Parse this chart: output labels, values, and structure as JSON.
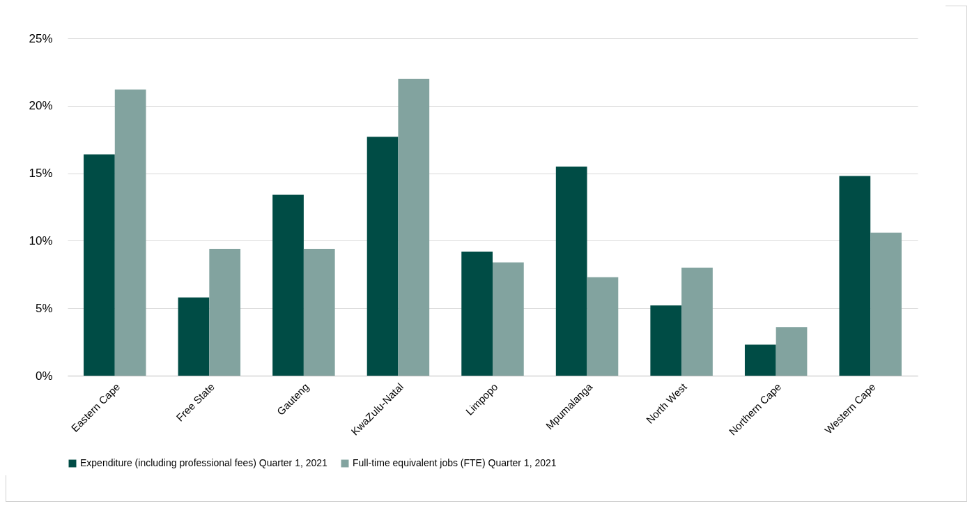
{
  "chart_data": {
    "type": "bar",
    "categories": [
      "Eastern Cape",
      "Free State",
      "Gauteng",
      "KwaZulu-Natal",
      "Limpopo",
      "Mpumalanga",
      "North West",
      "Northern Cape",
      "Western Cape"
    ],
    "series": [
      {
        "name": "Expenditure (including professional fees) Quarter 1, 2021",
        "color": "#004c45",
        "values": [
          16.4,
          5.8,
          13.4,
          17.7,
          9.2,
          15.5,
          5.2,
          2.3,
          14.8
        ]
      },
      {
        "name": "Full-time equivalent jobs (FTE) Quarter 1, 2021",
        "color": "#82a39f",
        "values": [
          21.2,
          9.4,
          9.4,
          22.0,
          8.4,
          7.3,
          8.0,
          3.6,
          10.6
        ]
      }
    ],
    "ylim": [
      0,
      25
    ],
    "yticks": [
      {
        "value": 0,
        "label": "0%"
      },
      {
        "value": 5,
        "label": "5%"
      },
      {
        "value": 10,
        "label": "10%"
      },
      {
        "value": 15,
        "label": "15%"
      },
      {
        "value": 20,
        "label": "20%"
      },
      {
        "value": 25,
        "label": "25%"
      }
    ],
    "grid": "y",
    "legend": "bottom"
  }
}
